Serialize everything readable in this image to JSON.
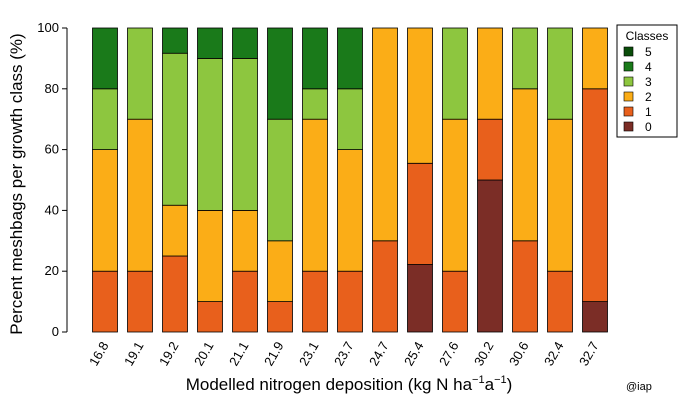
{
  "chart_data": {
    "type": "bar",
    "stacked": true,
    "title": "",
    "xlabel": "Modelled nitrogen deposition (kg N ha",
    "xlabel_sup1": "−1",
    "xlabel_mid": "a",
    "xlabel_sup2": "−1",
    "xlabel_end": ")",
    "ylabel": "Percent meshbags per growth class (%)",
    "ylim": [
      0,
      100
    ],
    "yticks": [
      "0",
      "20",
      "40",
      "60",
      "80",
      "100"
    ],
    "categories": [
      "16.8",
      "19.1",
      "19.2",
      "20.1",
      "21.1",
      "21.9",
      "23.1",
      "23.7",
      "24.7",
      "25.4",
      "27.6",
      "30.2",
      "30.6",
      "32.4",
      "32.7"
    ],
    "series": [
      {
        "name": "0",
        "color": "#7b2d26",
        "values": [
          0,
          0,
          0,
          0,
          0,
          0,
          0,
          0,
          0,
          22.2,
          0,
          50,
          0,
          0,
          10
        ]
      },
      {
        "name": "1",
        "color": "#e8601c",
        "values": [
          20,
          20,
          25,
          10,
          20,
          10,
          20,
          20,
          30,
          33.3,
          20,
          20,
          30,
          20,
          70
        ]
      },
      {
        "name": "2",
        "color": "#fbad17",
        "values": [
          40,
          50,
          16.7,
          30,
          20,
          20,
          50,
          40,
          70,
          44.5,
          50,
          30,
          50,
          50,
          20
        ]
      },
      {
        "name": "3",
        "color": "#8dc63f",
        "values": [
          20,
          30,
          50,
          50,
          50,
          40,
          10,
          20,
          0,
          0,
          30,
          0,
          20,
          30,
          0
        ]
      },
      {
        "name": "4",
        "color": "#1a7a1a",
        "values": [
          20,
          0,
          8.3,
          10,
          10,
          30,
          20,
          20,
          0,
          0,
          0,
          0,
          0,
          0,
          0
        ]
      },
      {
        "name": "5",
        "color": "#0a4d0a",
        "values": [
          0,
          0,
          0,
          0,
          0,
          0,
          0,
          0,
          0,
          0,
          0,
          0,
          0,
          0,
          0
        ]
      }
    ],
    "legend": {
      "title": "Classes",
      "position": "right",
      "order": [
        "5",
        "4",
        "3",
        "2",
        "1",
        "0"
      ]
    },
    "grid": false
  },
  "credit": "@iap"
}
